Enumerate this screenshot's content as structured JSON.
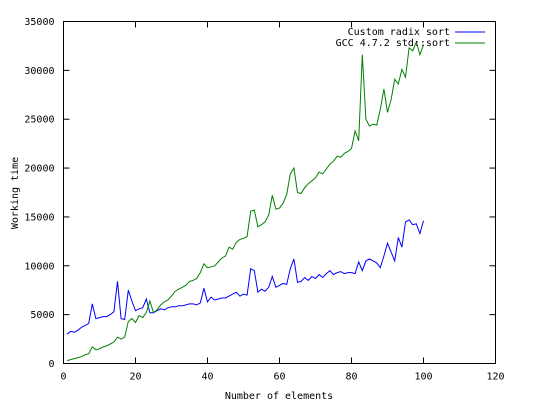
{
  "chart_data": {
    "type": "line",
    "title": "",
    "xlabel": "Number of elements",
    "ylabel": "Working time",
    "xlim": [
      0,
      120
    ],
    "ylim": [
      0,
      35000
    ],
    "xticks": [
      0,
      20,
      40,
      60,
      80,
      100,
      120
    ],
    "yticks": [
      0,
      5000,
      10000,
      15000,
      20000,
      25000,
      30000,
      35000
    ],
    "xtick_labels": [
      "0",
      "20",
      "40",
      "60",
      "80",
      "100",
      "120"
    ],
    "ytick_labels": [
      "0",
      "5000",
      "10000",
      "15000",
      "20000",
      "25000",
      "30000",
      "35000"
    ],
    "grid": false,
    "legend_position": "top-right",
    "series": [
      {
        "name": "Custom radix sort",
        "color": "#0000ff",
        "x": [
          1,
          2,
          3,
          4,
          5,
          6,
          7,
          8,
          9,
          10,
          11,
          12,
          13,
          14,
          15,
          16,
          17,
          18,
          19,
          20,
          21,
          22,
          23,
          24,
          25,
          26,
          27,
          28,
          29,
          30,
          31,
          32,
          33,
          34,
          35,
          36,
          37,
          38,
          39,
          40,
          41,
          42,
          43,
          44,
          45,
          46,
          47,
          48,
          49,
          50,
          51,
          52,
          53,
          54,
          55,
          56,
          57,
          58,
          59,
          60,
          61,
          62,
          63,
          64,
          65,
          66,
          67,
          68,
          69,
          70,
          71,
          72,
          73,
          74,
          75,
          76,
          77,
          78,
          79,
          80,
          81,
          82,
          83,
          84,
          85,
          86,
          87,
          88,
          89,
          90,
          91,
          92,
          93,
          94,
          95,
          96,
          97,
          98,
          99,
          100
        ],
        "y": [
          3000,
          3300,
          3200,
          3400,
          3700,
          3900,
          4100,
          6100,
          4600,
          4700,
          4800,
          4800,
          5000,
          5300,
          8400,
          4600,
          4500,
          7500,
          6400,
          5400,
          5600,
          5700,
          6600,
          5200,
          5200,
          5400,
          5600,
          5500,
          5700,
          5800,
          5800,
          5900,
          5900,
          6000,
          6100,
          6100,
          6000,
          6200,
          7700,
          6300,
          6800,
          6500,
          6600,
          6700,
          6700,
          6900,
          7100,
          7300,
          6900,
          7100,
          7000,
          9700,
          9500,
          7300,
          7600,
          7400,
          7800,
          8900,
          7800,
          8000,
          8200,
          8100,
          9700,
          10700,
          8300,
          8400,
          8800,
          8500,
          8900,
          8700,
          9100,
          8800,
          9200,
          9500,
          9100,
          9300,
          9400,
          9200,
          9300,
          9300,
          9200,
          10400,
          9500,
          10500,
          10700,
          10500,
          10300,
          9800,
          11000,
          12300,
          11400,
          10500,
          12900,
          11900,
          14500,
          14700,
          14200,
          14300,
          13300,
          14600
        ]
      },
      {
        "name": "GCC 4.7.2 std::sort",
        "color": "#008000",
        "x": [
          1,
          2,
          3,
          4,
          5,
          6,
          7,
          8,
          9,
          10,
          11,
          12,
          13,
          14,
          15,
          16,
          17,
          18,
          19,
          20,
          21,
          22,
          23,
          24,
          25,
          26,
          27,
          28,
          29,
          30,
          31,
          32,
          33,
          34,
          35,
          36,
          37,
          38,
          39,
          40,
          41,
          42,
          43,
          44,
          45,
          46,
          47,
          48,
          49,
          50,
          51,
          52,
          53,
          54,
          55,
          56,
          57,
          58,
          59,
          60,
          61,
          62,
          63,
          64,
          65,
          66,
          67,
          68,
          69,
          70,
          71,
          72,
          73,
          74,
          75,
          76,
          77,
          78,
          79,
          80,
          81,
          82,
          83,
          84,
          85,
          86,
          87,
          88,
          89,
          90,
          91,
          92,
          93,
          94,
          95,
          96,
          97,
          98,
          99,
          100
        ],
        "y": [
          300,
          400,
          500,
          600,
          700,
          900,
          1000,
          1700,
          1400,
          1500,
          1700,
          1800,
          2000,
          2200,
          2700,
          2500,
          2700,
          4300,
          4600,
          4200,
          4900,
          4700,
          5200,
          6400,
          5200,
          5500,
          6000,
          6300,
          6500,
          6900,
          7400,
          7600,
          7800,
          8000,
          8400,
          8500,
          8700,
          9300,
          10200,
          9800,
          9900,
          10000,
          10400,
          10800,
          11000,
          11900,
          11700,
          12400,
          12700,
          12800,
          13000,
          15600,
          15700,
          14000,
          14200,
          14500,
          15200,
          17200,
          15800,
          15900,
          16400,
          17300,
          19400,
          20000,
          17500,
          17400,
          18000,
          18400,
          18700,
          19000,
          19600,
          19400,
          19900,
          20400,
          20700,
          21200,
          21100,
          21500,
          21700,
          22000,
          23800,
          22800,
          31600,
          25000,
          24300,
          24500,
          24400,
          26000,
          28100,
          25700,
          27000,
          29100,
          28600,
          30100,
          29300,
          32300,
          32000,
          32900,
          31600,
          32600
        ]
      }
    ]
  }
}
